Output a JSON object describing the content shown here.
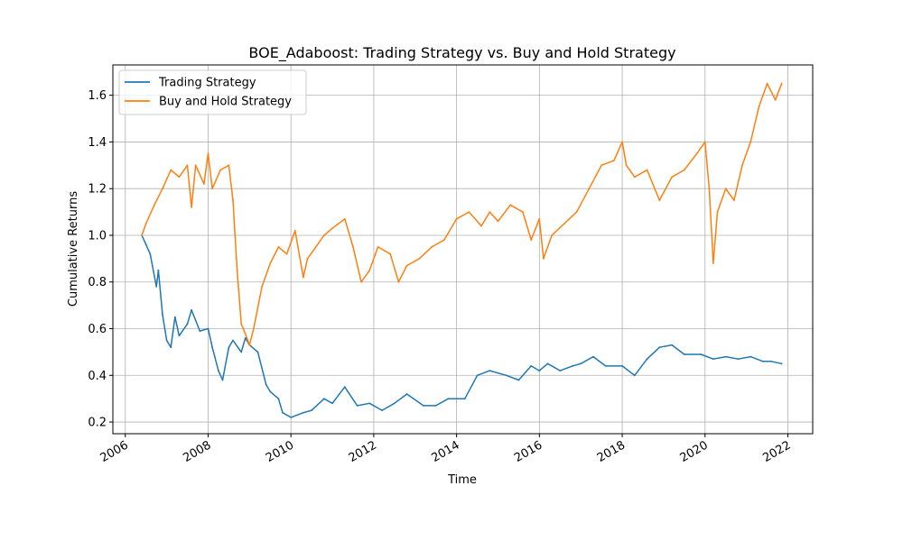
{
  "chart_data": {
    "type": "line",
    "title": "BOE_Adaboost: Trading Strategy vs. Buy and Hold Strategy",
    "xlabel": "Time",
    "ylabel": "Cumulative Returns",
    "xlim": [
      2005.7,
      2022.6
    ],
    "ylim": [
      0.15,
      1.73
    ],
    "x_ticks": [
      "2006",
      "2008",
      "2010",
      "2012",
      "2014",
      "2016",
      "2018",
      "2020",
      "2022"
    ],
    "y_ticks": [
      "0.2",
      "0.4",
      "0.6",
      "0.8",
      "1.0",
      "1.2",
      "1.4",
      "1.6"
    ],
    "grid": true,
    "legend_position": "top-left",
    "series": [
      {
        "name": "Trading Strategy",
        "color": "#1f77b4",
        "x": [
          2006.4,
          2006.5,
          2006.6,
          2006.75,
          2006.8,
          2006.9,
          2007.0,
          2007.1,
          2007.2,
          2007.3,
          2007.5,
          2007.6,
          2007.8,
          2008.0,
          2008.1,
          2008.25,
          2008.35,
          2008.5,
          2008.6,
          2008.8,
          2008.9,
          2009.0,
          2009.2,
          2009.4,
          2009.5,
          2009.7,
          2009.8,
          2010.0,
          2010.3,
          2010.5,
          2010.8,
          2011.0,
          2011.3,
          2011.6,
          2011.9,
          2012.2,
          2012.5,
          2012.8,
          2013.2,
          2013.5,
          2013.8,
          2014.2,
          2014.5,
          2014.8,
          2015.2,
          2015.5,
          2015.8,
          2016.0,
          2016.2,
          2016.5,
          2016.8,
          2017.0,
          2017.3,
          2017.6,
          2018.0,
          2018.3,
          2018.6,
          2018.9,
          2019.2,
          2019.5,
          2019.9,
          2020.2,
          2020.5,
          2020.8,
          2021.1,
          2021.4,
          2021.6,
          2021.85
        ],
        "values": [
          1.0,
          0.96,
          0.92,
          0.78,
          0.85,
          0.66,
          0.55,
          0.52,
          0.65,
          0.57,
          0.62,
          0.68,
          0.59,
          0.6,
          0.52,
          0.42,
          0.38,
          0.52,
          0.55,
          0.5,
          0.56,
          0.53,
          0.5,
          0.36,
          0.33,
          0.3,
          0.24,
          0.22,
          0.24,
          0.25,
          0.3,
          0.28,
          0.35,
          0.27,
          0.28,
          0.25,
          0.28,
          0.32,
          0.27,
          0.27,
          0.3,
          0.3,
          0.4,
          0.42,
          0.4,
          0.38,
          0.44,
          0.42,
          0.45,
          0.42,
          0.44,
          0.45,
          0.48,
          0.44,
          0.44,
          0.4,
          0.47,
          0.52,
          0.53,
          0.49,
          0.49,
          0.47,
          0.48,
          0.47,
          0.48,
          0.46,
          0.46,
          0.45
        ]
      },
      {
        "name": "Buy and Hold Strategy",
        "color": "#ff7f0e",
        "x": [
          2006.4,
          2006.5,
          2006.7,
          2006.9,
          2007.1,
          2007.3,
          2007.5,
          2007.6,
          2007.7,
          2007.9,
          2008.0,
          2008.1,
          2008.3,
          2008.5,
          2008.6,
          2008.7,
          2008.8,
          2008.85,
          2009.0,
          2009.1,
          2009.3,
          2009.5,
          2009.7,
          2009.9,
          2010.1,
          2010.3,
          2010.4,
          2010.6,
          2010.8,
          2011.0,
          2011.3,
          2011.5,
          2011.7,
          2011.9,
          2012.1,
          2012.4,
          2012.6,
          2012.8,
          2013.1,
          2013.4,
          2013.7,
          2014.0,
          2014.3,
          2014.6,
          2014.8,
          2015.0,
          2015.3,
          2015.6,
          2015.8,
          2016.0,
          2016.1,
          2016.3,
          2016.6,
          2016.9,
          2017.2,
          2017.5,
          2017.8,
          2018.0,
          2018.1,
          2018.3,
          2018.6,
          2018.9,
          2019.2,
          2019.5,
          2019.8,
          2020.0,
          2020.1,
          2020.2,
          2020.3,
          2020.5,
          2020.7,
          2020.9,
          2021.1,
          2021.3,
          2021.5,
          2021.7,
          2021.85
        ],
        "values": [
          1.0,
          1.05,
          1.13,
          1.2,
          1.28,
          1.25,
          1.3,
          1.12,
          1.3,
          1.22,
          1.35,
          1.2,
          1.28,
          1.3,
          1.15,
          0.85,
          0.62,
          0.6,
          0.53,
          0.6,
          0.78,
          0.88,
          0.95,
          0.92,
          1.02,
          0.82,
          0.9,
          0.95,
          1.0,
          1.03,
          1.07,
          0.95,
          0.8,
          0.85,
          0.95,
          0.92,
          0.8,
          0.87,
          0.9,
          0.95,
          0.98,
          1.07,
          1.1,
          1.04,
          1.1,
          1.06,
          1.13,
          1.1,
          0.98,
          1.07,
          0.9,
          1.0,
          1.05,
          1.1,
          1.2,
          1.3,
          1.32,
          1.4,
          1.3,
          1.25,
          1.28,
          1.15,
          1.25,
          1.28,
          1.35,
          1.4,
          1.2,
          0.88,
          1.1,
          1.2,
          1.15,
          1.3,
          1.4,
          1.55,
          1.65,
          1.58,
          1.65
        ]
      }
    ]
  }
}
